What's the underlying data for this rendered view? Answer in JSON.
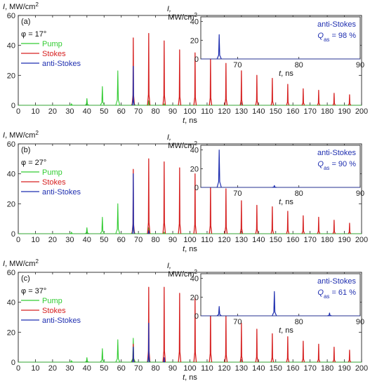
{
  "colors": {
    "pump": "#33cc33",
    "stokes": "#d62020",
    "anti_stokes": "#1f2fb0",
    "axis": "#222222"
  },
  "chart_data": [
    {
      "type": "line",
      "panel": "(a)",
      "phi": "φ = 17°",
      "ylabel": "I, MW/cm²",
      "xlabel": "t, ns",
      "xlim": [
        0,
        200
      ],
      "ylim": [
        0,
        60
      ],
      "xticks": [
        0,
        10,
        20,
        30,
        40,
        50,
        60,
        70,
        80,
        90,
        100,
        110,
        120,
        130,
        140,
        150,
        160,
        170,
        180,
        190,
        200
      ],
      "yticks": [
        0,
        20,
        40,
        60
      ],
      "legend": [
        "Pump",
        "Stokes",
        "anti-Stokes"
      ],
      "series": [
        {
          "name": "Pump",
          "pulses": [
            [
              31,
              1
            ],
            [
              40,
              4.5
            ],
            [
              49,
              12.5
            ],
            [
              58,
              23
            ],
            [
              67,
              10
            ],
            [
              76,
              3
            ],
            [
              85,
              1
            ]
          ]
        },
        {
          "name": "Stokes",
          "pulses": [
            [
              67,
              45
            ],
            [
              76,
              48
            ],
            [
              85,
              43
            ],
            [
              94,
              37
            ],
            [
              103,
              35
            ],
            [
              112,
              32
            ],
            [
              121,
              28
            ],
            [
              130,
              23
            ],
            [
              139,
              20
            ],
            [
              148,
              18
            ],
            [
              157,
              14
            ],
            [
              166,
              11
            ],
            [
              175,
              10
            ],
            [
              184,
              8
            ],
            [
              193,
              7
            ]
          ]
        },
        {
          "name": "anti-Stokes",
          "pulses": [
            [
              67,
              26
            ]
          ]
        }
      ],
      "inset": {
        "ylabel": "I, MW/cm²",
        "xlabel": "t, ns",
        "xlim": [
          64,
          90
        ],
        "ylim": [
          0,
          45
        ],
        "xticks": [
          70,
          80,
          90
        ],
        "yticks": [
          0,
          20,
          40
        ],
        "title": "anti-Stokes",
        "efficiency": "Qas = 98 %",
        "pulses": [
          [
            67,
            26
          ]
        ]
      }
    },
    {
      "type": "line",
      "panel": "(b)",
      "phi": "φ = 27°",
      "ylabel": "I, MW/cm²",
      "xlabel": "t, ns",
      "xlim": [
        0,
        200
      ],
      "ylim": [
        0,
        60
      ],
      "xticks": [
        0,
        10,
        20,
        30,
        40,
        50,
        60,
        70,
        80,
        90,
        100,
        110,
        120,
        130,
        140,
        150,
        160,
        170,
        180,
        190,
        200
      ],
      "yticks": [
        0,
        20,
        40,
        60
      ],
      "legend": [
        "Pump",
        "Stokes",
        "anti-Stokes"
      ],
      "series": [
        {
          "name": "Pump",
          "pulses": [
            [
              31,
              1
            ],
            [
              40,
              4
            ],
            [
              49,
              11
            ],
            [
              58,
              20
            ],
            [
              67,
              10
            ],
            [
              76,
              4
            ],
            [
              85,
              1
            ]
          ]
        },
        {
          "name": "Stokes",
          "pulses": [
            [
              67,
              43
            ],
            [
              76,
              50
            ],
            [
              85,
              48
            ],
            [
              94,
              44
            ],
            [
              103,
              40
            ],
            [
              112,
              35
            ],
            [
              121,
              30
            ],
            [
              130,
              22
            ],
            [
              139,
              19
            ],
            [
              148,
              18
            ],
            [
              157,
              15
            ],
            [
              166,
              12
            ],
            [
              175,
              11
            ],
            [
              184,
              9
            ],
            [
              193,
              7
            ]
          ]
        },
        {
          "name": "anti-Stokes",
          "pulses": [
            [
              67,
              40
            ],
            [
              76,
              2
            ]
          ]
        }
      ],
      "inset": {
        "ylabel": "I, MW/cm²",
        "xlabel": "t, ns",
        "xlim": [
          64,
          90
        ],
        "ylim": [
          0,
          45
        ],
        "xticks": [
          70,
          80,
          90
        ],
        "yticks": [
          0,
          20,
          40
        ],
        "title": "anti-Stokes",
        "efficiency": "Qas = 90 %",
        "pulses": [
          [
            67,
            40
          ],
          [
            76,
            2
          ]
        ]
      }
    },
    {
      "type": "line",
      "panel": "(c)",
      "phi": "φ = 37°",
      "ylabel": "I, MW/cm²",
      "xlabel": "t, ns",
      "xlim": [
        0,
        200
      ],
      "ylim": [
        0,
        60
      ],
      "xticks": [
        0,
        10,
        20,
        30,
        40,
        50,
        60,
        70,
        80,
        90,
        100,
        110,
        120,
        130,
        140,
        150,
        160,
        170,
        180,
        190,
        200
      ],
      "yticks": [
        0,
        20,
        40,
        60
      ],
      "legend": [
        "Pump",
        "Stokes",
        "anti-Stokes"
      ],
      "series": [
        {
          "name": "Pump",
          "pulses": [
            [
              31,
              1
            ],
            [
              40,
              3
            ],
            [
              49,
              9
            ],
            [
              58,
              15
            ],
            [
              67,
              16
            ],
            [
              76,
              4
            ],
            [
              85,
              1
            ]
          ]
        },
        {
          "name": "Stokes",
          "pulses": [
            [
              67,
              12
            ],
            [
              76,
              50
            ],
            [
              85,
              50
            ],
            [
              94,
              46
            ],
            [
              103,
              43
            ],
            [
              112,
              38
            ],
            [
              121,
              31
            ],
            [
              130,
              26
            ],
            [
              139,
              22
            ],
            [
              148,
              19
            ],
            [
              157,
              17
            ],
            [
              166,
              14
            ],
            [
              175,
              12
            ],
            [
              184,
              10
            ],
            [
              193,
              8
            ]
          ]
        },
        {
          "name": "anti-Stokes",
          "pulses": [
            [
              67,
              10
            ],
            [
              76,
              26
            ],
            [
              85,
              3
            ]
          ]
        }
      ],
      "inset": {
        "ylabel": "I, MW/cm²",
        "xlabel": "t, ns",
        "xlim": [
          64,
          90
        ],
        "ylim": [
          0,
          45
        ],
        "xticks": [
          70,
          80,
          90
        ],
        "yticks": [
          0,
          20,
          40
        ],
        "title": "anti-Stokes",
        "efficiency": "Qas = 61 %",
        "pulses": [
          [
            67,
            10
          ],
          [
            76,
            26
          ],
          [
            85,
            3
          ]
        ]
      }
    }
  ]
}
